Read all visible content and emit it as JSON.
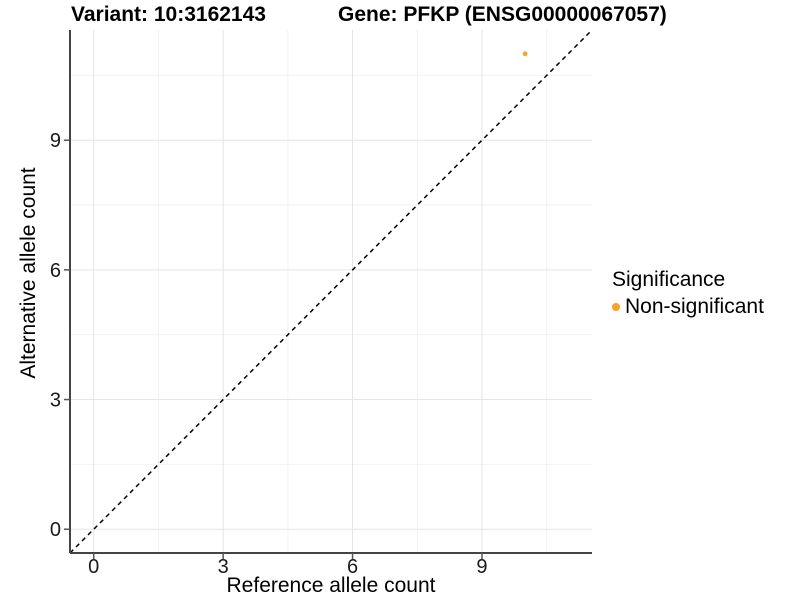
{
  "titles": {
    "left": "Variant: 10:3162143",
    "right": "Gene: PFKP (ENSG00000067057)"
  },
  "legend": {
    "title": "Significance",
    "items": [
      {
        "label": "Non-significant",
        "color": "#F8A12B"
      }
    ]
  },
  "chart_data": {
    "type": "scatter",
    "title_left": "Variant: 10:3162143",
    "title_right": "Gene: PFKP (ENSG00000067057)",
    "xlabel": "Reference allele count",
    "ylabel": "Alternative allele count",
    "points": [
      {
        "x": 10,
        "y": 11,
        "series": "Non-significant",
        "color": "#F8A12B"
      }
    ],
    "xticks": [
      0,
      3,
      6,
      9
    ],
    "yticks": [
      0,
      3,
      6,
      9
    ],
    "minor_ticks": [
      1.5,
      4.5,
      7.5,
      10.5
    ],
    "xlim": [
      -0.55,
      11.55
    ],
    "ylim": [
      -0.55,
      11.55
    ],
    "identity_line": {
      "style": "dashed",
      "from": -0.55,
      "to": 11.55,
      "color": "#000000"
    },
    "grid": true,
    "legend_position": "right",
    "colors": {
      "major_grid": "#e5e5e5",
      "minor_grid": "#f2f2f2",
      "axis_line": "#444444",
      "tick_mark": "#555555",
      "tick_label": "#1a1a1a",
      "background": "#ffffff"
    }
  }
}
